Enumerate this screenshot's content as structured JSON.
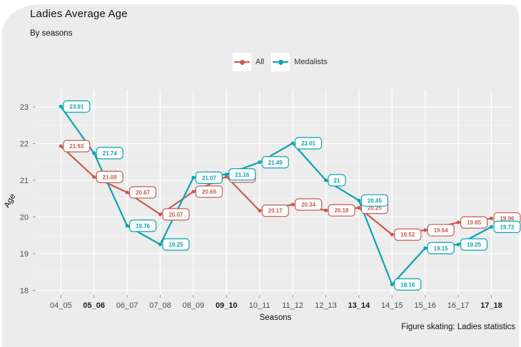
{
  "header": {
    "title": "Ladies Average Age",
    "subtitle": "By seasons"
  },
  "legend": {
    "items": [
      {
        "label": "All",
        "color": "#c85a50"
      },
      {
        "label": "Medalists",
        "color": "#0aa3b2"
      }
    ]
  },
  "caption": {
    "text": "Figure skating: Ladies statistics"
  },
  "colors": {
    "canvas_background": "#ececec",
    "gridline_major": "#ffffff",
    "gridline_minor": "#f7f7f7",
    "tick_label": "#4d4d4d",
    "tick_label_olympic": "#1a1a1a",
    "label_box_fill": "#ffffff",
    "series_all": "#c85a50",
    "series_medalists": "#0aa3b2"
  },
  "chart_data": {
    "type": "line",
    "title": "Ladies Average Age",
    "subtitle": "By seasons",
    "xlabel": "Seasons",
    "ylabel": "Age",
    "caption": "Figure skating: Ladies statistics",
    "ylim": [
      18,
      23.4
    ],
    "yticks": [
      18,
      19,
      20,
      21,
      22,
      23
    ],
    "grid": true,
    "legend_position": "top",
    "categories": [
      "04_05",
      "05_06",
      "06_07",
      "07_08",
      "08_09",
      "09_10",
      "10_11",
      "11_12",
      "12_13",
      "13_14",
      "14_15",
      "15_16",
      "16_17",
      "17_18"
    ],
    "bold_categories": [
      "05_06",
      "09_10",
      "13_14",
      "17_18"
    ],
    "series": [
      {
        "name": "All",
        "color": "#c85a50",
        "values": [
          21.93,
          21.09,
          20.67,
          20.07,
          20.69,
          21.1,
          20.17,
          20.34,
          20.18,
          20.25,
          19.52,
          19.64,
          19.85,
          19.96
        ],
        "labels": [
          "21.93",
          "21.09",
          "20.67",
          "20.07",
          "20.69",
          "",
          "20.17",
          "20.34",
          "20.18",
          "20.25",
          "19.52",
          "19.64",
          "19.85",
          "19.96"
        ],
        "hidden_label_index": 5
      },
      {
        "name": "Medalists",
        "color": "#0aa3b2",
        "values": [
          23.01,
          21.74,
          19.76,
          19.25,
          21.07,
          21.16,
          21.49,
          22.01,
          21.0,
          20.45,
          18.16,
          19.15,
          19.25,
          19.73
        ],
        "labels": [
          "23.01",
          "21.74",
          "19.76",
          "19.25",
          "21.07",
          "21.16",
          "21.49",
          "22.01",
          "21",
          "20.45",
          "18.16",
          "19.15",
          "19.25",
          "19.73"
        ]
      }
    ]
  }
}
